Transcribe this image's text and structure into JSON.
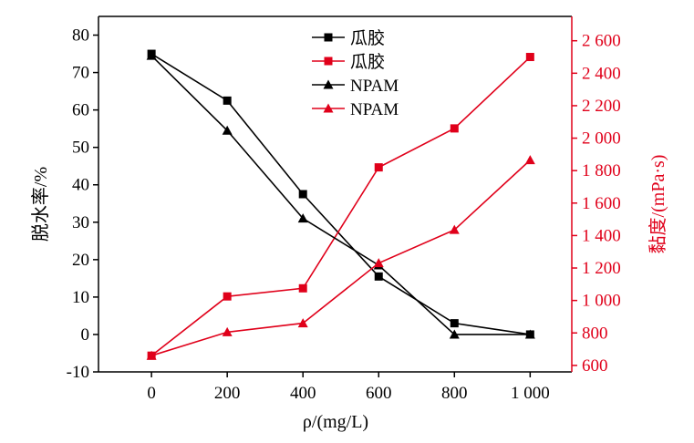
{
  "chart_data": {
    "type": "line",
    "x": [
      0,
      200,
      400,
      600,
      800,
      1000
    ],
    "x_tick_labels": [
      "0",
      "200",
      "400",
      "600",
      "800",
      "1 000"
    ],
    "xlabel": "ρ/(mg/L)",
    "xlim": [
      -140,
      1110
    ],
    "left_axis": {
      "label": "脱水率/%",
      "range": [
        -10,
        85
      ],
      "ticks": [
        -10,
        0,
        10,
        20,
        30,
        40,
        50,
        60,
        70,
        80
      ],
      "tick_labels": [
        "-10",
        "0",
        "10",
        "20",
        "30",
        "40",
        "50",
        "60",
        "70",
        "80"
      ],
      "color": "#000000"
    },
    "right_axis": {
      "label": "黏度/(mPa·s)",
      "range": [
        560,
        2750
      ],
      "ticks": [
        600,
        800,
        1000,
        1200,
        1400,
        1600,
        1800,
        2000,
        2200,
        2400,
        2600
      ],
      "tick_labels": [
        "600",
        "800",
        "1 000",
        "1 200",
        "1 400",
        "1 600",
        "1 800",
        "2 000",
        "2 200",
        "2 400",
        "2 600"
      ],
      "color": "#e0001a"
    },
    "series": [
      {
        "name": "瓜胶",
        "axis": "left",
        "marker": "square",
        "color": "#000000",
        "values": [
          75,
          62.5,
          37.5,
          15.5,
          3,
          0
        ]
      },
      {
        "name": "瓜胶",
        "axis": "right",
        "marker": "square",
        "color": "#e0001a",
        "values": [
          660,
          1025,
          1075,
          1820,
          2060,
          2500
        ]
      },
      {
        "name": "NPAM",
        "axis": "left",
        "marker": "triangle",
        "color": "#000000",
        "values": [
          74.5,
          54.5,
          31,
          18.5,
          0,
          0
        ]
      },
      {
        "name": "NPAM",
        "axis": "right",
        "marker": "triangle",
        "color": "#e0001a",
        "values": [
          660,
          805,
          860,
          1230,
          1435,
          1865
        ]
      }
    ],
    "legend_position": "top-center",
    "grid": false
  }
}
